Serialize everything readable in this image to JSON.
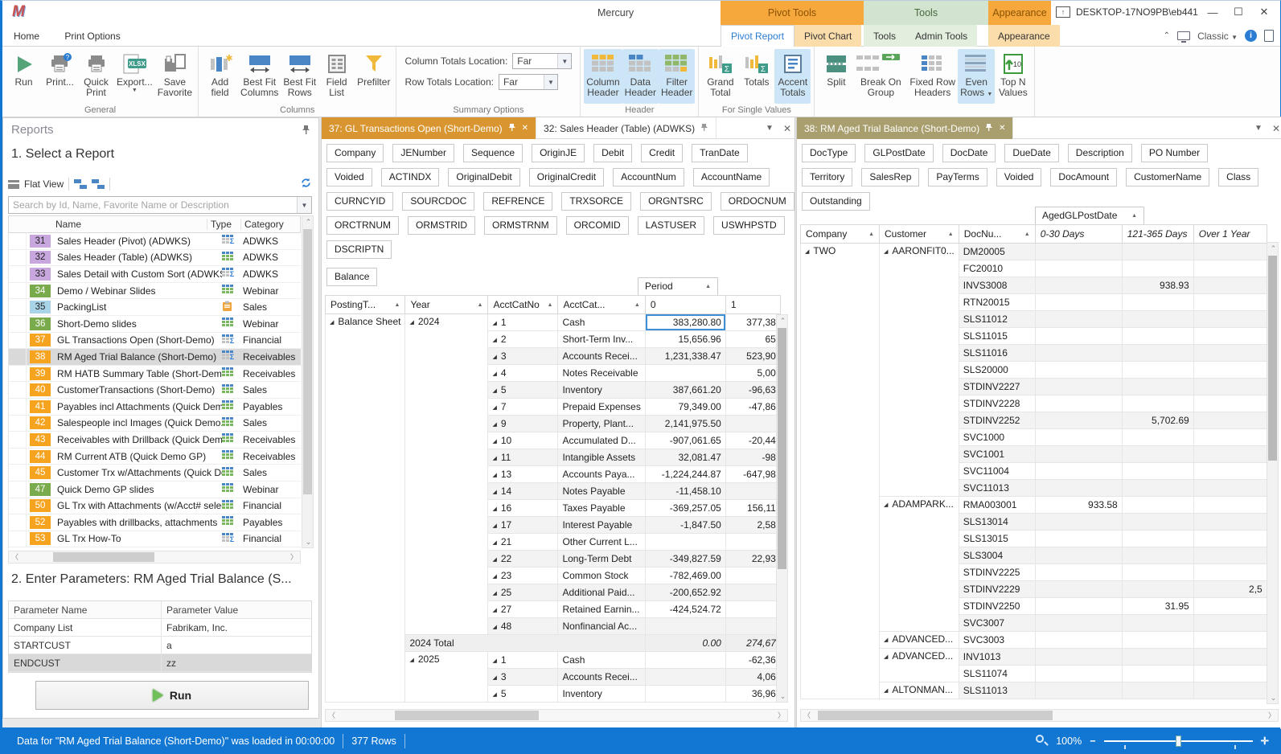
{
  "colors": {
    "accent_blue": "#2b7cd3",
    "context_orange": "#f6a83d",
    "context_green": "#d2e3cf",
    "doc_tab_orange": "#d9952f",
    "doc_tab_tan": "#a89e6e",
    "status_blue": "#1177d2",
    "selected_cell_border": "#3d8fd6",
    "badge_orange": "#f6a41f",
    "badge_green": "#79ab4c",
    "badge_purple": "#c7a7dd",
    "badge_blue": "#a9d4e8"
  },
  "title_bar": {
    "logo": "M",
    "app_title": "Mercury",
    "window_title": "DESKTOP-17NO9PB\\eb441",
    "context_groups": [
      "Pivot Tools",
      "Tools",
      "Appearance"
    ]
  },
  "tab_row": {
    "home": "Home",
    "print_options": "Print Options",
    "pivot_report": "Pivot Report",
    "pivot_chart": "Pivot Chart",
    "tools": "Tools",
    "admin_tools": "Admin Tools",
    "appearance": "Appearance",
    "view_mode": "Classic"
  },
  "ribbon": {
    "groups": [
      {
        "label": "General",
        "items": [
          {
            "lines": [
              "Run"
            ],
            "icon": "run"
          },
          {
            "lines": [
              "Print..."
            ],
            "icon": "printq"
          },
          {
            "lines": [
              "Quick",
              "Print"
            ],
            "icon": "printer"
          },
          {
            "lines": [
              "Export..."
            ],
            "icon": "xlsx",
            "arrow": "below"
          },
          {
            "lines": [
              "Save",
              "Favorite"
            ],
            "icon": "savefav"
          }
        ]
      },
      {
        "label": "Columns",
        "items": [
          {
            "lines": [
              "Add",
              "field"
            ],
            "icon": "addfield"
          },
          {
            "lines": [
              "Best Fit",
              "Columns"
            ],
            "icon": "bestfit"
          },
          {
            "lines": [
              "Best Fit",
              "Rows"
            ],
            "icon": "bestfit"
          },
          {
            "lines": [
              "Field",
              "List"
            ],
            "icon": "fieldlist"
          },
          {
            "lines": [
              "Prefilter"
            ],
            "icon": "funnel"
          }
        ]
      },
      {
        "label": "Summary Options",
        "summary": true,
        "rows": [
          {
            "label": "Column Totals Location:",
            "value": "Far"
          },
          {
            "label": "Row Totals Location:",
            "value": "Far"
          }
        ]
      },
      {
        "label": "Header",
        "items": [
          {
            "lines": [
              "Column",
              "Header"
            ],
            "icon": "colheader",
            "active": true
          },
          {
            "lines": [
              "Data",
              "Header"
            ],
            "icon": "dataheader",
            "active": true
          },
          {
            "lines": [
              "Filter",
              "Header"
            ],
            "icon": "filterheader",
            "active": true
          }
        ]
      },
      {
        "label": "For Single Values",
        "items": [
          {
            "lines": [
              "Grand",
              "Total"
            ],
            "icon": "grandtotal"
          },
          {
            "lines": [
              "Totals"
            ],
            "icon": "totals"
          },
          {
            "lines": [
              "Accent",
              "Totals"
            ],
            "icon": "accent",
            "active": true
          }
        ]
      },
      {
        "label": "",
        "items": [
          {
            "lines": [
              "Split"
            ],
            "icon": "split"
          },
          {
            "lines": [
              "Break On",
              "Group"
            ],
            "icon": "breakon"
          },
          {
            "lines": [
              "Fixed Row",
              "Headers"
            ],
            "icon": "fixedrow"
          },
          {
            "lines": [
              "Even",
              "Rows"
            ],
            "icon": "evenrows",
            "active": true,
            "arrow": "inline"
          },
          {
            "lines": [
              "Top N",
              "Values"
            ],
            "icon": "topn"
          }
        ]
      }
    ]
  },
  "reports_panel": {
    "title": "Reports",
    "step1": "1. Select a Report",
    "flat_view": "Flat View",
    "search_placeholder": "Search by Id, Name, Favorite Name or Description",
    "columns": {
      "name": "Name",
      "type": "Type",
      "category": "Category"
    },
    "rows": [
      {
        "id": "31",
        "name": "Sales Header (Pivot) (ADWKS)",
        "badge": "purple",
        "type": "pivot",
        "category": "ADWKS"
      },
      {
        "id": "32",
        "name": "Sales Header (Table) (ADWKS)",
        "badge": "purple",
        "type": "table",
        "category": "ADWKS"
      },
      {
        "id": "33",
        "name": "Sales Detail with Custom Sort (ADWKS)",
        "badge": "purple",
        "type": "pivot",
        "category": "ADWKS"
      },
      {
        "id": "34",
        "name": "Demo / Webinar Slides",
        "badge": "green",
        "type": "table",
        "category": "Webinar"
      },
      {
        "id": "35",
        "name": "PackingList",
        "badge": "blue",
        "type": "clipboard",
        "category": "Sales"
      },
      {
        "id": "36",
        "name": "Short-Demo slides",
        "badge": "green",
        "type": "table",
        "category": "Webinar"
      },
      {
        "id": "37",
        "name": "GL Transactions Open (Short-Demo)",
        "badge": "orange",
        "type": "pivot",
        "category": "Financial"
      },
      {
        "id": "38",
        "name": "RM Aged Trial Balance (Short-Demo)",
        "badge": "orange",
        "type": "pivot",
        "category": "Receivables",
        "selected": true
      },
      {
        "id": "39",
        "name": "RM HATB Summary Table (Short-Demo)",
        "badge": "orange",
        "type": "table",
        "category": "Receivables"
      },
      {
        "id": "40",
        "name": "CustomerTransactions (Short-Demo)",
        "badge": "orange",
        "type": "table",
        "category": "Sales"
      },
      {
        "id": "41",
        "name": "Payables incl Attachments (Quick Dem...",
        "badge": "orange",
        "type": "table",
        "category": "Payables"
      },
      {
        "id": "42",
        "name": "Salespeople incl Images (Quick Demo...",
        "badge": "orange",
        "type": "table",
        "category": "Sales"
      },
      {
        "id": "43",
        "name": "Receivables with Drillback (Quick Demo...",
        "badge": "orange",
        "type": "table",
        "category": "Receivables"
      },
      {
        "id": "44",
        "name": "RM Current ATB  (Quick Demo GP)",
        "badge": "orange",
        "type": "table",
        "category": "Receivables"
      },
      {
        "id": "45",
        "name": "Customer Trx w/Attachments (Quick De...",
        "badge": "orange",
        "type": "table",
        "category": "Sales"
      },
      {
        "id": "47",
        "name": "Quick Demo GP slides",
        "badge": "green",
        "type": "table",
        "category": "Webinar"
      },
      {
        "id": "50",
        "name": "GL Trx with Attachments (w/Acct# selec...",
        "badge": "orange",
        "type": "table",
        "category": "Financial"
      },
      {
        "id": "52",
        "name": "Payables with drillbacks, attachments",
        "badge": "orange",
        "type": "table",
        "category": "Payables"
      },
      {
        "id": "53",
        "name": "GL Trx How-To",
        "badge": "orange",
        "type": "pivot",
        "category": "Financial"
      }
    ],
    "step2": "2. Enter Parameters:  RM Aged Trial Balance (S...",
    "param_columns": [
      "Parameter Name",
      "Parameter Value"
    ],
    "params": [
      {
        "name": "Company List",
        "value": "Fabrikam, Inc."
      },
      {
        "name": "STARTCUST",
        "value": "a"
      },
      {
        "name": "ENDCUST",
        "value": "zz",
        "selected": true
      }
    ],
    "run_label": "Run"
  },
  "gl_pane": {
    "tabs": [
      {
        "label": "37: GL Transactions Open (Short-Demo)",
        "active": true
      },
      {
        "label": "32: Sales Header (Table) (ADWKS)",
        "active": false
      }
    ],
    "field_rows": [
      [
        "Company",
        "JENumber",
        "Sequence",
        "OriginJE",
        "Debit",
        "Credit",
        "TranDate"
      ],
      [
        "Voided",
        "ACTINDX",
        "OriginalDebit",
        "OriginalCredit",
        "AccountNum",
        "AccountName"
      ],
      [
        "CURNCYID",
        "SOURCDOC",
        "REFRENCE",
        "TRXSORCE",
        "ORGNTSRC",
        "ORDOCNUM"
      ],
      [
        "ORCTRNUM",
        "ORMSTRID",
        "ORMSTRNM",
        "ORCOMID",
        "LASTUSER",
        "USWHPSTD"
      ],
      [
        "DSCRIPTN"
      ]
    ],
    "data_field": "Balance",
    "column_field": "Period",
    "row_fields": [
      "PostingT...",
      "Year",
      "AcctCatNo",
      "AcctCat..."
    ],
    "value_columns": [
      "0",
      "1"
    ],
    "posting_group": "Balance Sheet",
    "year_2024": {
      "year": "2024",
      "rows": [
        [
          "1",
          "Cash",
          "383,280.80",
          "377,38"
        ],
        [
          "2",
          "Short-Term Inv...",
          "15,656.96",
          "65"
        ],
        [
          "3",
          "Accounts Recei...",
          "1,231,338.47",
          "523,90"
        ],
        [
          "4",
          "Notes Receivable",
          "",
          "5,00"
        ],
        [
          "5",
          "Inventory",
          "387,661.20",
          "-96,63"
        ],
        [
          "7",
          "Prepaid Expenses",
          "79,349.00",
          "-47,86"
        ],
        [
          "9",
          "Property, Plant...",
          "2,141,975.50",
          ""
        ],
        [
          "10",
          "Accumulated D...",
          "-907,061.65",
          "-20,44"
        ],
        [
          "11",
          "Intangible Assets",
          "32,081.47",
          "-98"
        ],
        [
          "13",
          "Accounts Paya...",
          "-1,224,244.87",
          "-647,98"
        ],
        [
          "14",
          "Notes Payable",
          "-11,458.10",
          ""
        ],
        [
          "16",
          "Taxes Payable",
          "-369,257.05",
          "156,11"
        ],
        [
          "17",
          "Interest Payable",
          "-1,847.50",
          "2,58"
        ],
        [
          "21",
          "Other Current L...",
          "",
          ""
        ],
        [
          "22",
          "Long-Term Debt",
          "-349,827.59",
          "22,93"
        ],
        [
          "23",
          "Common Stock",
          "-782,469.00",
          ""
        ],
        [
          "25",
          "Additional Paid...",
          "-200,652.92",
          ""
        ],
        [
          "27",
          "Retained Earnin...",
          "-424,524.72",
          ""
        ],
        [
          "48",
          "Nonfinancial Ac...",
          "",
          ""
        ]
      ]
    },
    "total_row": {
      "label": "2024 Total",
      "v0": "0.00",
      "v1": "274,67"
    },
    "year_2025": {
      "year": "2025",
      "rows": [
        [
          "1",
          "Cash",
          "",
          "-62,36"
        ],
        [
          "3",
          "Accounts Recei...",
          "",
          "4,06"
        ],
        [
          "5",
          "Inventory",
          "",
          "36,96"
        ]
      ]
    }
  },
  "atb_pane": {
    "tab": "38: RM Aged Trial Balance (Short-Demo)",
    "field_rows": [
      [
        "DocType",
        "GLPostDate",
        "DocDate",
        "DueDate",
        "Description",
        "PO Number"
      ],
      [
        "Territory",
        "SalesRep",
        "PayTerms",
        "Voided",
        "DocAmount",
        "CustomerName",
        "Class"
      ],
      [
        "Outstanding"
      ]
    ],
    "column_field": "AgedGLPostDate",
    "row_fields": [
      "Company",
      "Customer",
      "DocNu..."
    ],
    "value_columns": [
      "0-30 Days",
      "121-365 Days",
      "Over 1 Year"
    ],
    "company_group": "TWO",
    "customers": [
      {
        "name": "AARONFIT0...",
        "docs": [
          [
            "DM20005",
            "",
            "",
            ""
          ],
          [
            "FC20010",
            "",
            "",
            ""
          ],
          [
            "INVS3008",
            "",
            "938.93",
            ""
          ],
          [
            "RTN20015",
            "",
            "",
            ""
          ],
          [
            "SLS11012",
            "",
            "",
            ""
          ],
          [
            "SLS11015",
            "",
            "",
            ""
          ],
          [
            "SLS11016",
            "",
            "",
            ""
          ],
          [
            "SLS20000",
            "",
            "",
            ""
          ],
          [
            "STDINV2227",
            "",
            "",
            ""
          ],
          [
            "STDINV2228",
            "",
            "",
            ""
          ],
          [
            "STDINV2252",
            "",
            "5,702.69",
            ""
          ],
          [
            "SVC1000",
            "",
            "",
            ""
          ],
          [
            "SVC1001",
            "",
            "",
            ""
          ],
          [
            "SVC11004",
            "",
            "",
            ""
          ],
          [
            "SVC11013",
            "",
            "",
            ""
          ]
        ]
      },
      {
        "name": "ADAMPARK...",
        "docs": [
          [
            "RMA003001",
            "933.58",
            "",
            ""
          ],
          [
            "SLS13014",
            "",
            "",
            ""
          ],
          [
            "SLS13015",
            "",
            "",
            ""
          ],
          [
            "SLS3004",
            "",
            "",
            ""
          ],
          [
            "STDINV2225",
            "",
            "",
            ""
          ],
          [
            "STDINV2229",
            "",
            "",
            "2,5"
          ],
          [
            "STDINV2250",
            "",
            "31.95",
            ""
          ],
          [
            "SVC3007",
            "",
            "",
            ""
          ]
        ]
      },
      {
        "name": "ADVANCED...",
        "docs": [
          [
            "SVC3003",
            "",
            "",
            ""
          ]
        ]
      },
      {
        "name": "ADVANCED...",
        "docs": [
          [
            "INV1013",
            "",
            "",
            ""
          ],
          [
            "SLS11074",
            "",
            "",
            ""
          ]
        ]
      },
      {
        "name": "ALTONMAN...",
        "docs": [
          [
            "SLS11013",
            "",
            "",
            ""
          ]
        ]
      }
    ]
  },
  "status_bar": {
    "message": "Data for \"RM Aged Trial Balance (Short-Demo)\" was loaded in 00:00:00",
    "rows": "377 Rows",
    "zoom": "100%"
  }
}
